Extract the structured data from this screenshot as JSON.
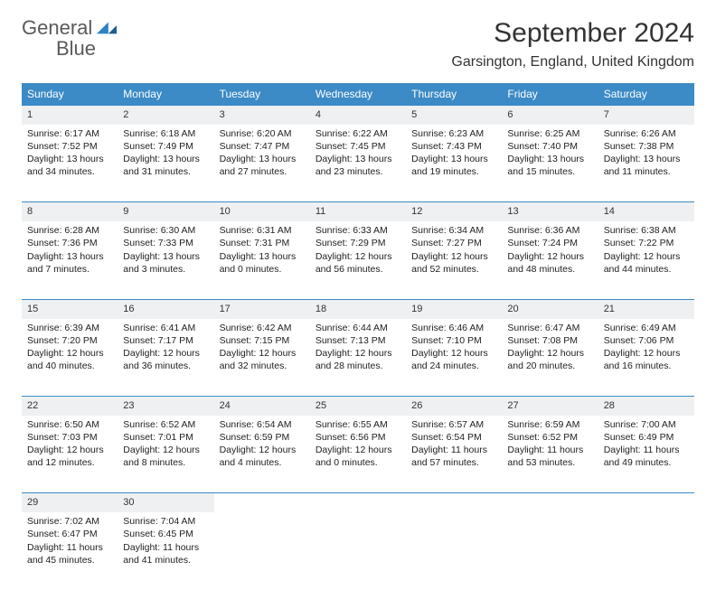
{
  "brand": {
    "name1": "General",
    "name2": "Blue"
  },
  "title": "September 2024",
  "location": "Garsington, England, United Kingdom",
  "header_bg": "#3c8ac6",
  "daynum_bg": "#eef0f1",
  "border_color": "#3c8ac6",
  "weekdays": [
    "Sunday",
    "Monday",
    "Tuesday",
    "Wednesday",
    "Thursday",
    "Friday",
    "Saturday"
  ],
  "weeks": [
    [
      {
        "n": "1",
        "sr": "Sunrise: 6:17 AM",
        "ss": "Sunset: 7:52 PM",
        "d1": "Daylight: 13 hours",
        "d2": "and 34 minutes."
      },
      {
        "n": "2",
        "sr": "Sunrise: 6:18 AM",
        "ss": "Sunset: 7:49 PM",
        "d1": "Daylight: 13 hours",
        "d2": "and 31 minutes."
      },
      {
        "n": "3",
        "sr": "Sunrise: 6:20 AM",
        "ss": "Sunset: 7:47 PM",
        "d1": "Daylight: 13 hours",
        "d2": "and 27 minutes."
      },
      {
        "n": "4",
        "sr": "Sunrise: 6:22 AM",
        "ss": "Sunset: 7:45 PM",
        "d1": "Daylight: 13 hours",
        "d2": "and 23 minutes."
      },
      {
        "n": "5",
        "sr": "Sunrise: 6:23 AM",
        "ss": "Sunset: 7:43 PM",
        "d1": "Daylight: 13 hours",
        "d2": "and 19 minutes."
      },
      {
        "n": "6",
        "sr": "Sunrise: 6:25 AM",
        "ss": "Sunset: 7:40 PM",
        "d1": "Daylight: 13 hours",
        "d2": "and 15 minutes."
      },
      {
        "n": "7",
        "sr": "Sunrise: 6:26 AM",
        "ss": "Sunset: 7:38 PM",
        "d1": "Daylight: 13 hours",
        "d2": "and 11 minutes."
      }
    ],
    [
      {
        "n": "8",
        "sr": "Sunrise: 6:28 AM",
        "ss": "Sunset: 7:36 PM",
        "d1": "Daylight: 13 hours",
        "d2": "and 7 minutes."
      },
      {
        "n": "9",
        "sr": "Sunrise: 6:30 AM",
        "ss": "Sunset: 7:33 PM",
        "d1": "Daylight: 13 hours",
        "d2": "and 3 minutes."
      },
      {
        "n": "10",
        "sr": "Sunrise: 6:31 AM",
        "ss": "Sunset: 7:31 PM",
        "d1": "Daylight: 13 hours",
        "d2": "and 0 minutes."
      },
      {
        "n": "11",
        "sr": "Sunrise: 6:33 AM",
        "ss": "Sunset: 7:29 PM",
        "d1": "Daylight: 12 hours",
        "d2": "and 56 minutes."
      },
      {
        "n": "12",
        "sr": "Sunrise: 6:34 AM",
        "ss": "Sunset: 7:27 PM",
        "d1": "Daylight: 12 hours",
        "d2": "and 52 minutes."
      },
      {
        "n": "13",
        "sr": "Sunrise: 6:36 AM",
        "ss": "Sunset: 7:24 PM",
        "d1": "Daylight: 12 hours",
        "d2": "and 48 minutes."
      },
      {
        "n": "14",
        "sr": "Sunrise: 6:38 AM",
        "ss": "Sunset: 7:22 PM",
        "d1": "Daylight: 12 hours",
        "d2": "and 44 minutes."
      }
    ],
    [
      {
        "n": "15",
        "sr": "Sunrise: 6:39 AM",
        "ss": "Sunset: 7:20 PM",
        "d1": "Daylight: 12 hours",
        "d2": "and 40 minutes."
      },
      {
        "n": "16",
        "sr": "Sunrise: 6:41 AM",
        "ss": "Sunset: 7:17 PM",
        "d1": "Daylight: 12 hours",
        "d2": "and 36 minutes."
      },
      {
        "n": "17",
        "sr": "Sunrise: 6:42 AM",
        "ss": "Sunset: 7:15 PM",
        "d1": "Daylight: 12 hours",
        "d2": "and 32 minutes."
      },
      {
        "n": "18",
        "sr": "Sunrise: 6:44 AM",
        "ss": "Sunset: 7:13 PM",
        "d1": "Daylight: 12 hours",
        "d2": "and 28 minutes."
      },
      {
        "n": "19",
        "sr": "Sunrise: 6:46 AM",
        "ss": "Sunset: 7:10 PM",
        "d1": "Daylight: 12 hours",
        "d2": "and 24 minutes."
      },
      {
        "n": "20",
        "sr": "Sunrise: 6:47 AM",
        "ss": "Sunset: 7:08 PM",
        "d1": "Daylight: 12 hours",
        "d2": "and 20 minutes."
      },
      {
        "n": "21",
        "sr": "Sunrise: 6:49 AM",
        "ss": "Sunset: 7:06 PM",
        "d1": "Daylight: 12 hours",
        "d2": "and 16 minutes."
      }
    ],
    [
      {
        "n": "22",
        "sr": "Sunrise: 6:50 AM",
        "ss": "Sunset: 7:03 PM",
        "d1": "Daylight: 12 hours",
        "d2": "and 12 minutes."
      },
      {
        "n": "23",
        "sr": "Sunrise: 6:52 AM",
        "ss": "Sunset: 7:01 PM",
        "d1": "Daylight: 12 hours",
        "d2": "and 8 minutes."
      },
      {
        "n": "24",
        "sr": "Sunrise: 6:54 AM",
        "ss": "Sunset: 6:59 PM",
        "d1": "Daylight: 12 hours",
        "d2": "and 4 minutes."
      },
      {
        "n": "25",
        "sr": "Sunrise: 6:55 AM",
        "ss": "Sunset: 6:56 PM",
        "d1": "Daylight: 12 hours",
        "d2": "and 0 minutes."
      },
      {
        "n": "26",
        "sr": "Sunrise: 6:57 AM",
        "ss": "Sunset: 6:54 PM",
        "d1": "Daylight: 11 hours",
        "d2": "and 57 minutes."
      },
      {
        "n": "27",
        "sr": "Sunrise: 6:59 AM",
        "ss": "Sunset: 6:52 PM",
        "d1": "Daylight: 11 hours",
        "d2": "and 53 minutes."
      },
      {
        "n": "28",
        "sr": "Sunrise: 7:00 AM",
        "ss": "Sunset: 6:49 PM",
        "d1": "Daylight: 11 hours",
        "d2": "and 49 minutes."
      }
    ],
    [
      {
        "n": "29",
        "sr": "Sunrise: 7:02 AM",
        "ss": "Sunset: 6:47 PM",
        "d1": "Daylight: 11 hours",
        "d2": "and 45 minutes."
      },
      {
        "n": "30",
        "sr": "Sunrise: 7:04 AM",
        "ss": "Sunset: 6:45 PM",
        "d1": "Daylight: 11 hours",
        "d2": "and 41 minutes."
      },
      null,
      null,
      null,
      null,
      null
    ]
  ]
}
